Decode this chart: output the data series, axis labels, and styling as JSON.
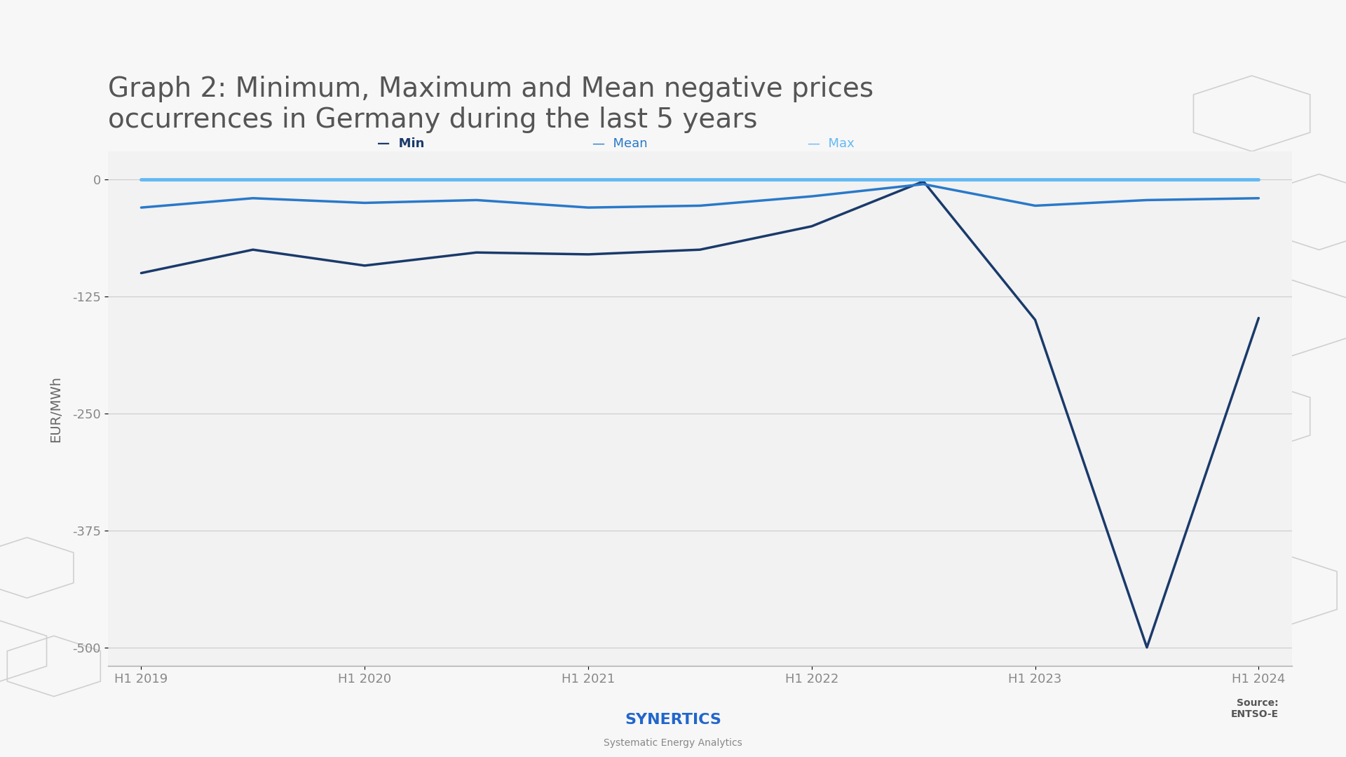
{
  "title": "Graph 2: Minimum, Maximum and Mean negative prices\noccurrences in Germany during the last 5 years",
  "ylabel": "EUR/MWh",
  "background_color": "#f5f5f5",
  "plot_background_color": "#f0f0f0",
  "x_labels": [
    "H1 2019",
    "H1 2020",
    "H1 2021",
    "H1 2022",
    "H1 2023",
    "H1 2024"
  ],
  "x_positions": [
    0,
    2,
    4,
    6,
    8,
    10
  ],
  "x_tick_positions": [
    0,
    2,
    4,
    6,
    8,
    10
  ],
  "ylim": [
    -520,
    30
  ],
  "yticks": [
    0,
    -125,
    -250,
    -375,
    -500
  ],
  "min_data": {
    "x": [
      0,
      1,
      2,
      3,
      4,
      5,
      6,
      7,
      8,
      9,
      10
    ],
    "y": [
      -100,
      -75,
      -92,
      -78,
      -80,
      -75,
      -50,
      -2,
      -150,
      -500,
      -148
    ]
  },
  "mean_data": {
    "x": [
      0,
      1,
      2,
      3,
      4,
      5,
      6,
      7,
      8,
      9,
      10
    ],
    "y": [
      -30,
      -20,
      -25,
      -22,
      -30,
      -28,
      -18,
      -5,
      -28,
      -22,
      -20
    ]
  },
  "max_data": {
    "x": [
      0,
      10
    ],
    "y": [
      0,
      0
    ]
  },
  "min_color": "#1a3a6b",
  "mean_color": "#2979c9",
  "max_color": "#64b9f4",
  "line_width": 2.5,
  "footer_text": "SYNERTICS",
  "footer_subtext": "Systematic Energy Analytics",
  "source_text": "Source:\nENTSO-E",
  "title_fontsize": 28,
  "label_fontsize": 14,
  "tick_fontsize": 13
}
